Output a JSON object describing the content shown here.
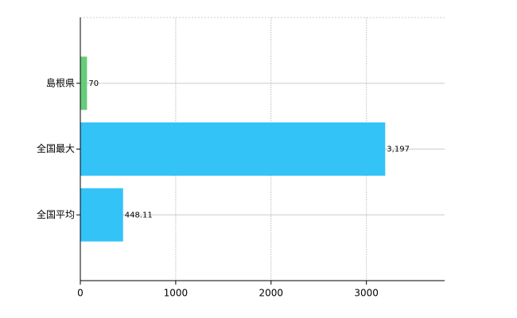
{
  "chart_data": {
    "type": "bar",
    "orientation": "horizontal",
    "categories": [
      "島根県",
      "全国最大",
      "全国平均"
    ],
    "values": [
      70,
      3197,
      448.11
    ],
    "value_labels": [
      "70",
      "3,197",
      "448.11"
    ],
    "colors": [
      "#66cc7a",
      "#33c3f7",
      "#33c3f7"
    ],
    "xlim": [
      0,
      3820
    ],
    "xticks": [
      0,
      1000,
      2000,
      3000
    ],
    "grid": true
  }
}
